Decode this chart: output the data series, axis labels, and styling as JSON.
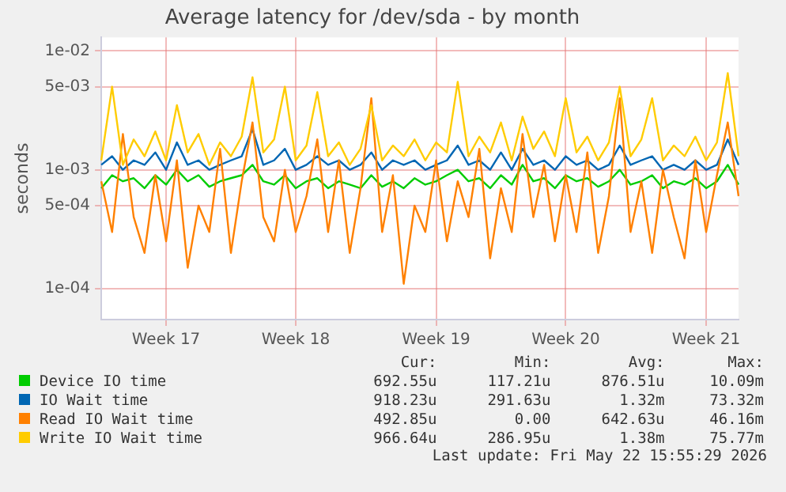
{
  "chart_data": {
    "type": "line",
    "title": "Average latency for /dev/sda - by month",
    "ylabel": "seconds",
    "log": "y",
    "grid": true,
    "legend": "bottom",
    "marker": "none",
    "line_style": "solid",
    "categories": [
      null,
      null,
      null,
      null,
      null,
      null,
      "Week 17",
      null,
      null,
      null,
      null,
      null,
      null,
      null,
      null,
      null,
      null,
      null,
      "Week 18",
      null,
      null,
      null,
      null,
      null,
      null,
      null,
      null,
      null,
      null,
      null,
      null,
      "Week 19",
      null,
      null,
      null,
      null,
      null,
      null,
      null,
      null,
      null,
      null,
      null,
      "Week 20",
      null,
      null,
      null,
      null,
      null,
      null,
      null,
      null,
      null,
      null,
      null,
      null,
      "Week 21",
      null,
      null,
      null
    ],
    "ylim": [
      5.5e-05,
      0.013
    ],
    "yticks": [
      {
        "value": 0.0001,
        "label": "1e-04"
      },
      {
        "value": 0.0005,
        "label": "5e-04"
      },
      {
        "value": 0.001,
        "label": "1e-03"
      },
      {
        "value": 0.005,
        "label": "5e-03"
      },
      {
        "value": 0.01,
        "label": "1e-02"
      }
    ],
    "series": [
      {
        "name": "Device IO time",
        "color": "#00cc00",
        "values": [
          0.0007,
          0.0009,
          0.0008,
          0.00085,
          0.0007,
          0.0009,
          0.00075,
          0.001,
          0.0008,
          0.0009,
          0.00072,
          0.0008,
          0.00085,
          0.0009,
          0.0011,
          0.0008,
          0.00075,
          0.0009,
          0.0007,
          0.0008,
          0.00085,
          0.0007,
          0.0008,
          0.00075,
          0.0007,
          0.0009,
          0.00072,
          0.0008,
          0.0007,
          0.00085,
          0.00075,
          0.0008,
          0.0009,
          0.001,
          0.0008,
          0.00085,
          0.0007,
          0.0009,
          0.00075,
          0.0011,
          0.0008,
          0.00085,
          0.0007,
          0.0009,
          0.0008,
          0.00085,
          0.00072,
          0.0008,
          0.001,
          0.00075,
          0.0008,
          0.0009,
          0.0007,
          0.0008,
          0.00075,
          0.00085,
          0.0007,
          0.0008,
          0.0011,
          0.00075
        ]
      },
      {
        "name": "IO Wait time",
        "color": "#0066b3",
        "values": [
          0.0011,
          0.0013,
          0.001,
          0.0012,
          0.0011,
          0.0014,
          0.001,
          0.0017,
          0.0011,
          0.0012,
          0.001,
          0.0011,
          0.0012,
          0.0013,
          0.0022,
          0.0011,
          0.0012,
          0.0015,
          0.001,
          0.0011,
          0.0013,
          0.0011,
          0.0012,
          0.001,
          0.0011,
          0.0014,
          0.001,
          0.0012,
          0.0011,
          0.0012,
          0.001,
          0.0011,
          0.0012,
          0.0016,
          0.0011,
          0.0012,
          0.001,
          0.0014,
          0.001,
          0.0015,
          0.0011,
          0.0012,
          0.001,
          0.0013,
          0.0011,
          0.0012,
          0.001,
          0.0011,
          0.0016,
          0.0011,
          0.0012,
          0.0013,
          0.001,
          0.0011,
          0.001,
          0.0012,
          0.001,
          0.0011,
          0.0018,
          0.0011
        ]
      },
      {
        "name": "Read IO Wait time",
        "color": "#ff8000",
        "values": [
          0.0008,
          0.0003,
          0.002,
          0.0004,
          0.0002,
          0.0009,
          0.00025,
          0.0012,
          0.00015,
          0.0005,
          0.0003,
          0.0015,
          0.0002,
          0.0008,
          0.0025,
          0.0004,
          0.00025,
          0.001,
          0.0003,
          0.0006,
          0.0018,
          0.0003,
          0.0012,
          0.0002,
          0.0007,
          0.004,
          0.0003,
          0.0009,
          0.00011,
          0.0005,
          0.0003,
          0.0012,
          0.00025,
          0.0008,
          0.0004,
          0.0015,
          0.00018,
          0.0007,
          0.0003,
          0.002,
          0.0004,
          0.0011,
          0.00025,
          0.0009,
          0.0003,
          0.0014,
          0.0002,
          0.0006,
          0.004,
          0.0003,
          0.0008,
          0.0002,
          0.001,
          0.0004,
          0.00018,
          0.0012,
          0.0003,
          0.0009,
          0.0025,
          0.0006
        ]
      },
      {
        "name": "Write IO Wait time",
        "color": "#ffcc00",
        "values": [
          0.0012,
          0.005,
          0.0011,
          0.0018,
          0.0013,
          0.0021,
          0.0012,
          0.0035,
          0.0014,
          0.002,
          0.0011,
          0.0017,
          0.0013,
          0.0019,
          0.006,
          0.0014,
          0.0018,
          0.005,
          0.0012,
          0.0016,
          0.0045,
          0.0013,
          0.0017,
          0.0011,
          0.0015,
          0.0035,
          0.0012,
          0.0016,
          0.0013,
          0.0018,
          0.0012,
          0.0017,
          0.0014,
          0.0055,
          0.0013,
          0.0019,
          0.0014,
          0.0025,
          0.0012,
          0.0028,
          0.0015,
          0.0021,
          0.0013,
          0.004,
          0.0014,
          0.0019,
          0.0012,
          0.0017,
          0.005,
          0.0013,
          0.0018,
          0.004,
          0.0012,
          0.0016,
          0.0013,
          0.0019,
          0.0012,
          0.0017,
          0.0065,
          0.0013
        ]
      }
    ],
    "annotations": [
      "Cur:",
      "Min:",
      "Avg:",
      "Max:",
      "692.55u",
      "117.21u",
      "876.51u",
      "10.09m",
      "918.23u",
      "291.63u",
      "1.32m",
      "73.32m",
      "492.85u",
      "0.00",
      "642.63u",
      "46.16m",
      "966.64u",
      "286.95u",
      "1.38m",
      "75.77m",
      "Last update: Fri May 22 15:55:29 2026"
    ]
  }
}
